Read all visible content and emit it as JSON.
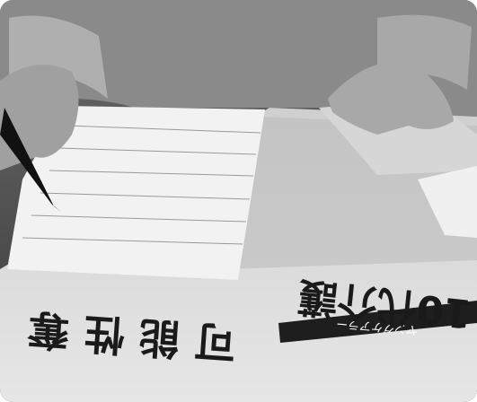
{
  "headline": {
    "main": "10代介護",
    "sub": "可能性奪",
    "banner": "ヤングケアラー"
  }
}
